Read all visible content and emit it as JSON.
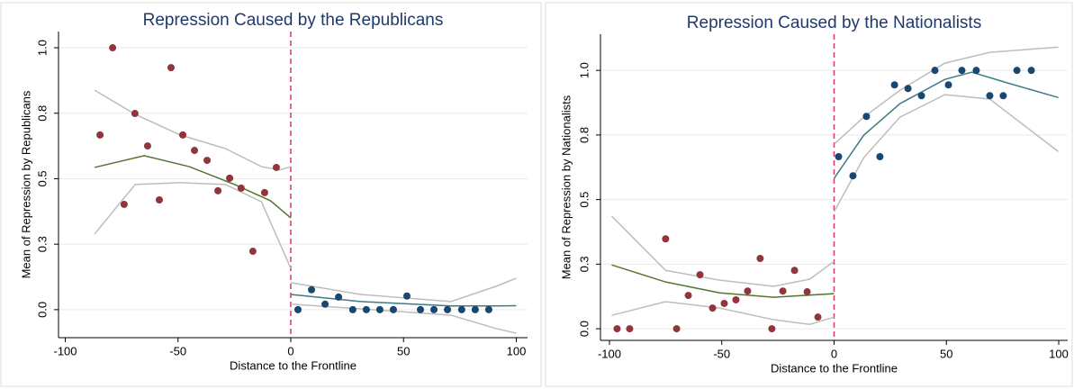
{
  "chart_data": [
    {
      "type": "scatter",
      "title": "Repression Caused by the Republicans",
      "x_label": "Distance to the Frontline",
      "y_label": "Mean of Repression by Republicans",
      "xlim": [
        -103,
        105
      ],
      "ylim": [
        -0.107,
        1.062
      ],
      "xticks": [
        -100,
        -50,
        0,
        50,
        100
      ],
      "yticks": [
        {
          "value": 0,
          "label": "0.0"
        },
        {
          "value": 0.25,
          "label": "0.3"
        },
        0.5,
        {
          "value": 0.75,
          "label": "0.8"
        },
        {
          "value": 1,
          "label": "1.0"
        }
      ],
      "grid": true,
      "cutoff": 0,
      "cutoff_color": "#d23a64",
      "series": [
        {
          "style": "markers",
          "color": "#90353b",
          "x": [
            -84.6,
            -79,
            -73.9,
            -69.1,
            -63.5,
            -58.3,
            -53.1,
            -47.9,
            -42.7,
            -37.1,
            -32.3,
            -27.1,
            -22,
            -16.8,
            -11.6,
            -6.4
          ],
          "values": [
            0.667,
            1.0,
            0.402,
            0.749,
            0.625,
            0.419,
            0.924,
            0.667,
            0.608,
            0.57,
            0.454,
            0.502,
            0.464,
            0.223,
            0.447,
            0.543
          ]
        },
        {
          "style": "markers",
          "color": "#1a476f",
          "x": [
            3.2,
            9.2,
            15.2,
            21.2,
            27.5,
            33.5,
            39.5,
            45.5,
            51.5,
            57.5,
            63.5,
            69.5,
            75.8,
            81.8,
            87.8
          ],
          "values": [
            0,
            0.076,
            0.021,
            0.048,
            0,
            0,
            0,
            0,
            0.052,
            0,
            0,
            0,
            0,
            0,
            0
          ]
        },
        {
          "style": "line",
          "color": "#bdbdbd",
          "x": [
            -87,
            -69,
            -49,
            -29,
            -13,
            -5,
            0
          ],
          "values": [
            0.838,
            0.746,
            0.667,
            0.615,
            0.546,
            0.533,
            0.546
          ]
        },
        {
          "style": "line",
          "color": "#bdbdbd",
          "x": [
            -87,
            -69,
            -49,
            -29,
            -13,
            0
          ],
          "values": [
            0.289,
            0.478,
            0.485,
            0.478,
            0.412,
            0.158
          ]
        },
        {
          "style": "line",
          "color": "#55752f",
          "x": [
            -87,
            -65,
            -45,
            -25,
            -9,
            0
          ],
          "values": [
            0.543,
            0.588,
            0.546,
            0.478,
            0.416,
            0.35
          ]
        },
        {
          "style": "line",
          "color": "#bdbdbd",
          "x": [
            0,
            31,
            71,
            91,
            100
          ],
          "values": [
            0.103,
            0.058,
            0.031,
            0.089,
            0.12
          ]
        },
        {
          "style": "line",
          "color": "#bdbdbd",
          "x": [
            0,
            31,
            71,
            91,
            100
          ],
          "values": [
            0.021,
            0.003,
            -0.021,
            -0.072,
            -0.09
          ]
        },
        {
          "style": "line",
          "color": "#3e7b85",
          "x": [
            0,
            31,
            71,
            91,
            100
          ],
          "values": [
            0.058,
            0.031,
            0.014,
            0.014,
            0.015
          ]
        }
      ]
    },
    {
      "type": "scatter",
      "title": "Repression Caused by the Nationalists",
      "x_label": "Distance to the Frontline",
      "y_label": "Mean of Repression by Nationalists",
      "xlim": [
        -104,
        104
      ],
      "ylim": [
        -0.045,
        1.14
      ],
      "xticks": [
        -100,
        -50,
        0,
        50,
        100
      ],
      "yticks": [
        {
          "value": 0,
          "label": "0.0"
        },
        {
          "value": 0.25,
          "label": "0.3"
        },
        0.5,
        {
          "value": 0.75,
          "label": "0.8"
        },
        {
          "value": 1,
          "label": "1.0"
        }
      ],
      "grid": true,
      "cutoff": 0,
      "cutoff_color": "#d23a64",
      "series": [
        {
          "style": "markers",
          "color": "#90353b",
          "x": [
            -96.6,
            -91,
            -75,
            -70.1,
            -64.9,
            -59.7,
            -54.1,
            -48.9,
            -43.7,
            -38.5,
            -32.9,
            -27.7,
            -22.8,
            -17.6,
            -12,
            -7.2
          ],
          "values": [
            0,
            0,
            0.348,
            0,
            0.129,
            0.209,
            0.08,
            0.098,
            0.112,
            0.146,
            0.272,
            0,
            0.146,
            0.226,
            0.143,
            0.045
          ]
        },
        {
          "style": "markers",
          "color": "#1a476f",
          "x": [
            2,
            8.4,
            14.4,
            20.4,
            26.9,
            32.9,
            38.9,
            44.9,
            50.9,
            56.9,
            63.3,
            69.3,
            75.3,
            81.4,
            87.8
          ],
          "values": [
            0.666,
            0.592,
            0.822,
            0.666,
            0.944,
            0.93,
            0.902,
            1.0,
            0.944,
            1.0,
            1.0,
            0.902,
            0.902,
            1.0,
            1.0
          ]
        },
        {
          "style": "line",
          "color": "#bdbdbd",
          "x": [
            -99,
            -75,
            -50.9,
            -26.9,
            -10.8,
            0
          ],
          "values": [
            0.436,
            0.226,
            0.188,
            0.164,
            0.192,
            0.261
          ]
        },
        {
          "style": "line",
          "color": "#bdbdbd",
          "x": [
            -99,
            -75,
            -50.9,
            -26.9,
            -10.8,
            0
          ],
          "values": [
            0.052,
            0.105,
            0.08,
            0.035,
            0.017,
            0.045
          ]
        },
        {
          "style": "line",
          "color": "#55752f",
          "x": [
            -99,
            -75,
            -50.9,
            -26.9,
            0
          ],
          "values": [
            0.247,
            0.181,
            0.139,
            0.122,
            0.136
          ]
        },
        {
          "style": "line",
          "color": "#bdbdbd",
          "x": [
            0,
            13.2,
            29.3,
            49.3,
            69.3,
            99.8
          ],
          "values": [
            0.714,
            0.819,
            0.923,
            1.028,
            1.07,
            1.09
          ]
        },
        {
          "style": "line",
          "color": "#bdbdbd",
          "x": [
            0,
            13.2,
            29.3,
            49.3,
            69.3,
            99.8
          ],
          "values": [
            0.453,
            0.662,
            0.819,
            0.906,
            0.889,
            0.686
          ]
        },
        {
          "style": "line",
          "color": "#3e7b85",
          "x": [
            0,
            13.2,
            29.3,
            49.3,
            61.3,
            77.4,
            99.8
          ],
          "values": [
            0.582,
            0.749,
            0.871,
            0.965,
            0.993,
            0.951,
            0.895
          ]
        }
      ]
    }
  ]
}
